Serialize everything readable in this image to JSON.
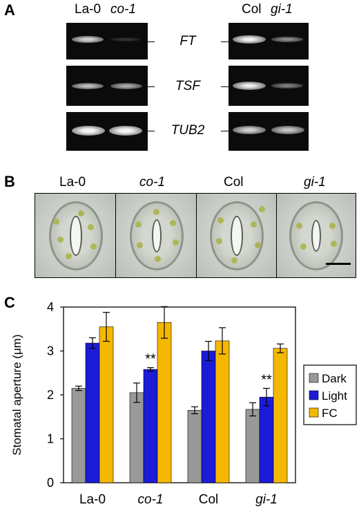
{
  "panels": {
    "a": "A",
    "b": "B",
    "c": "C"
  },
  "panel_a": {
    "left_header": [
      "La-0",
      "co-1"
    ],
    "right_header": [
      "Col",
      "gi-1"
    ],
    "genes": [
      "FT",
      "TSF",
      "TUB2"
    ]
  },
  "panel_b": {
    "labels": [
      "La-0",
      "co-1",
      "Col",
      "gi-1"
    ]
  },
  "chart_data": {
    "type": "bar",
    "categories": [
      "La-0",
      "co-1",
      "Col",
      "gi-1"
    ],
    "series": [
      {
        "name": "Dark",
        "color": "#999999",
        "values": [
          2.15,
          2.05,
          1.65,
          1.67
        ],
        "errors": [
          0.05,
          0.22,
          0.08,
          0.15
        ]
      },
      {
        "name": "Light",
        "color": "#1b1bd8",
        "values": [
          3.18,
          2.58,
          3.0,
          1.95
        ],
        "errors": [
          0.12,
          0.04,
          0.22,
          0.2
        ]
      },
      {
        "name": "FC",
        "color": "#f5b800",
        "values": [
          3.55,
          3.65,
          3.23,
          3.06
        ],
        "errors": [
          0.33,
          0.36,
          0.3,
          0.1
        ]
      }
    ],
    "ylabel": "Stomatal aperture (μm)",
    "ylim": [
      0,
      4
    ],
    "yticks": [
      "0",
      "1",
      "2",
      "3",
      "4"
    ],
    "annotations": [
      {
        "category": "co-1",
        "series": "Light",
        "text": "**"
      },
      {
        "category": "gi-1",
        "series": "Light",
        "text": "**"
      }
    ],
    "legend_position": "right"
  }
}
